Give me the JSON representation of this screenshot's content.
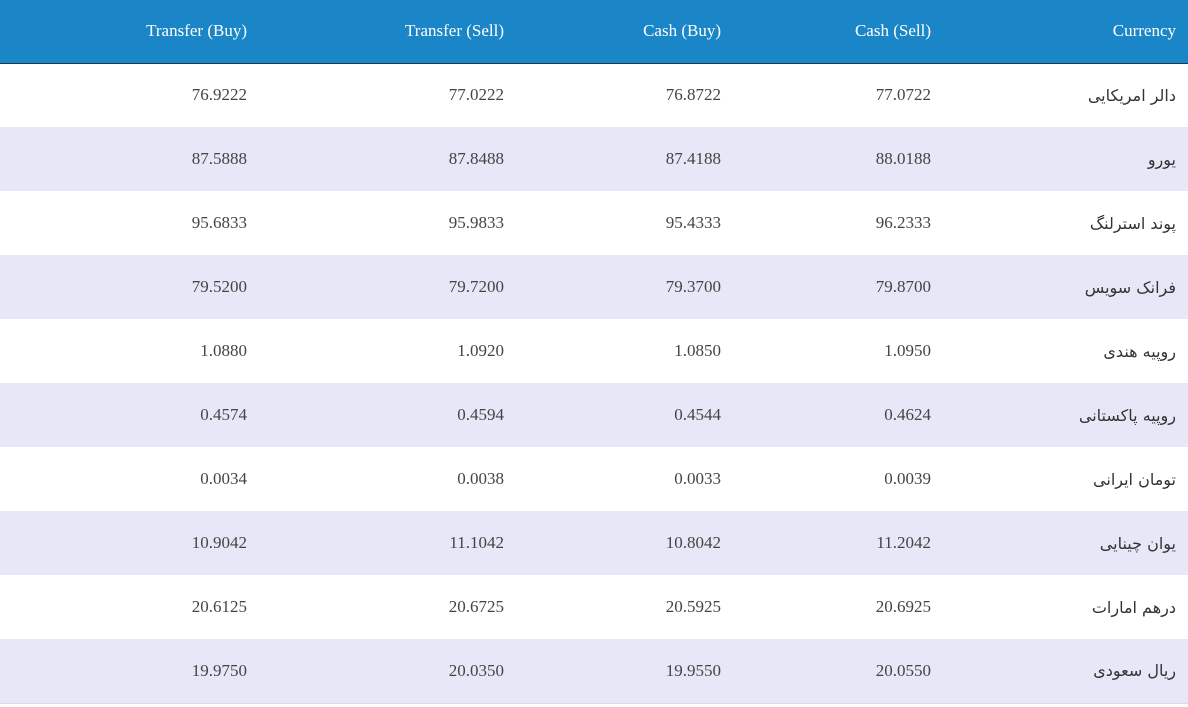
{
  "colors": {
    "header_bg": "#1b86c7",
    "stripe_bg": "#e7e7f7"
  },
  "table": {
    "headers": [
      "Transfer (Buy)",
      "Transfer (Sell)",
      "Cash (Buy)",
      "Cash (Sell)",
      "Currency"
    ],
    "rows": [
      {
        "transfer_buy": "76.9222",
        "transfer_sell": "77.0222",
        "cash_buy": "76.8722",
        "cash_sell": "77.0722",
        "currency": "دالر امریکایی"
      },
      {
        "transfer_buy": "87.5888",
        "transfer_sell": "87.8488",
        "cash_buy": "87.4188",
        "cash_sell": "88.0188",
        "currency": "یورو"
      },
      {
        "transfer_buy": "95.6833",
        "transfer_sell": "95.9833",
        "cash_buy": "95.4333",
        "cash_sell": "96.2333",
        "currency": "پوند استرلنگ"
      },
      {
        "transfer_buy": "79.5200",
        "transfer_sell": "79.7200",
        "cash_buy": "79.3700",
        "cash_sell": "79.8700",
        "currency": "فرانک سویس"
      },
      {
        "transfer_buy": "1.0880",
        "transfer_sell": "1.0920",
        "cash_buy": "1.0850",
        "cash_sell": "1.0950",
        "currency": "روپیه هندی"
      },
      {
        "transfer_buy": "0.4574",
        "transfer_sell": "0.4594",
        "cash_buy": "0.4544",
        "cash_sell": "0.4624",
        "currency": "روپیه پاکستانی"
      },
      {
        "transfer_buy": "0.0034",
        "transfer_sell": "0.0038",
        "cash_buy": "0.0033",
        "cash_sell": "0.0039",
        "currency": "تومان ایرانی"
      },
      {
        "transfer_buy": "10.9042",
        "transfer_sell": "11.1042",
        "cash_buy": "10.8042",
        "cash_sell": "11.2042",
        "currency": "یوان چینایی"
      },
      {
        "transfer_buy": "20.6125",
        "transfer_sell": "20.6725",
        "cash_buy": "20.5925",
        "cash_sell": "20.6925",
        "currency": "درهم امارات"
      },
      {
        "transfer_buy": "19.9750",
        "transfer_sell": "20.0350",
        "cash_buy": "19.9550",
        "cash_sell": "20.0550",
        "currency": "ریال سعودی"
      }
    ]
  }
}
